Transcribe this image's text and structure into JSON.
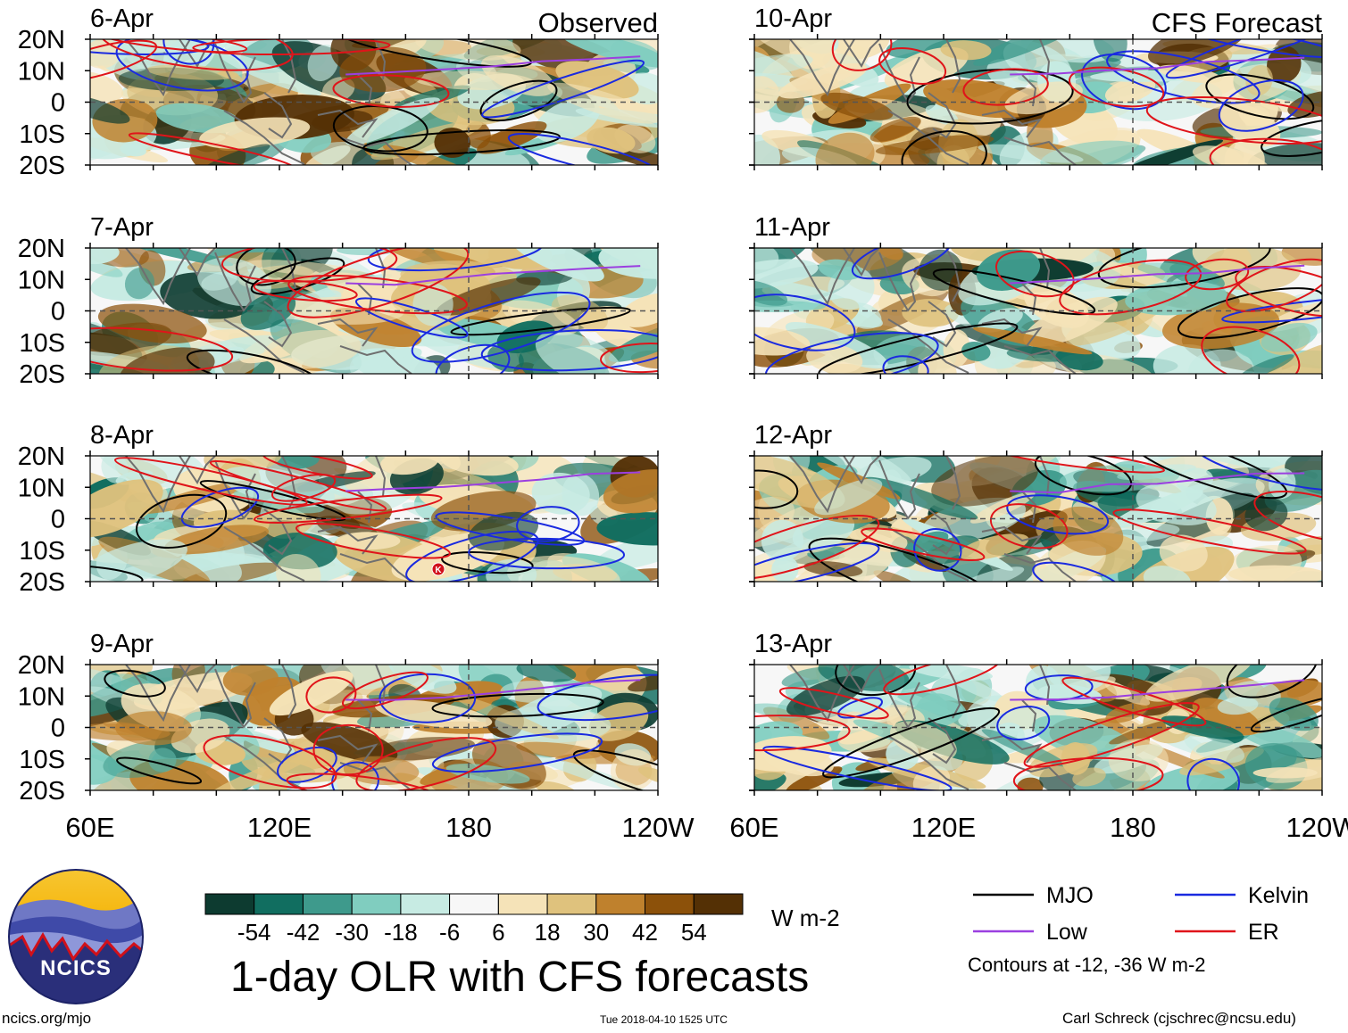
{
  "chart_data": {
    "type": "heatmap",
    "title": "1-day OLR with CFS forecasts",
    "units": "W m-2",
    "x_ticks": [
      "60E",
      "120E",
      "180",
      "120W"
    ],
    "y_ticks": [
      "20N",
      "10N",
      "0",
      "10S",
      "20S"
    ],
    "observed_label": "Observed",
    "forecast_label": "CFS Forecast",
    "observed_dates": [
      "6-Apr",
      "7-Apr",
      "8-Apr",
      "9-Apr"
    ],
    "forecast_dates": [
      "10-Apr",
      "11-Apr",
      "12-Apr",
      "13-Apr"
    ],
    "colorbar_levels": [
      "-54",
      "-42",
      "-30",
      "-18",
      "-6",
      "6",
      "18",
      "30",
      "42",
      "54"
    ],
    "colorbar_colors": [
      "#0d3b30",
      "#116e60",
      "#3e9a8c",
      "#80cdbf",
      "#c7ebe3",
      "#f7f7f7",
      "#f5e3b8",
      "#dfc27d",
      "#bf812d",
      "#8c510a",
      "#543005"
    ],
    "contour_note": "Contours at -12, -36 W m-2",
    "legend": [
      {
        "label": "MJO",
        "color": "#000000"
      },
      {
        "label": "Kelvin",
        "color": "#1a2ae0"
      },
      {
        "label": "Low",
        "color": "#9b3fe0"
      },
      {
        "label": "ER",
        "color": "#e0141a"
      }
    ]
  },
  "footer": {
    "url": "ncics.org/mjo",
    "timestamp": "Tue 2018-04-10 1525 UTC",
    "author": "Carl Schreck (cjschrec@ncsu.edu)"
  },
  "logo": {
    "text": "NCICS"
  },
  "marker": {
    "label": "K"
  }
}
